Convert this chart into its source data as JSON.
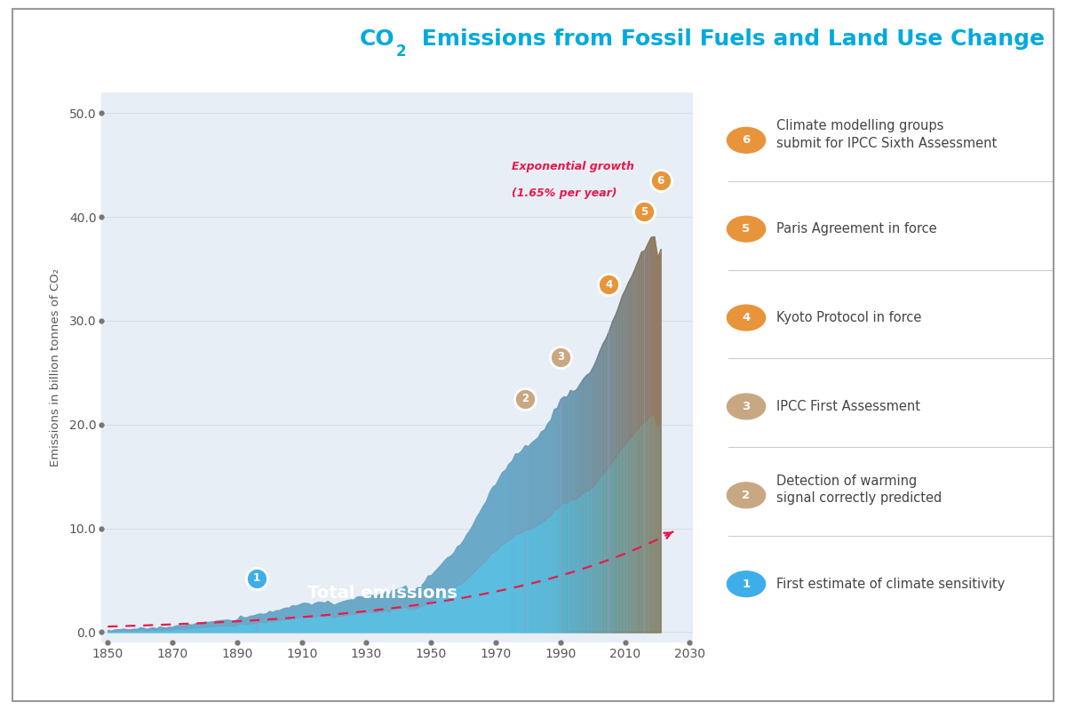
{
  "title_part1": "CO",
  "title_sub": "2",
  "title_part2": " Emissions from Fossil Fuels and Land Use Change",
  "ylabel": "Emissions in billion tonnes of CO₂",
  "xlim": [
    1848,
    2031
  ],
  "ylim": [
    -1,
    52
  ],
  "yticks": [
    0.0,
    10.0,
    20.0,
    30.0,
    40.0,
    50.0
  ],
  "xticks": [
    1850,
    1870,
    1890,
    1910,
    1930,
    1950,
    1970,
    1990,
    2010,
    2030
  ],
  "bg_color": "#ffffff",
  "plot_bg_color": "#e8eef5",
  "title_color": "#00aadd",
  "axis_label_color": "#555555",
  "tick_color": "#555555",
  "area_label": "Total emissions",
  "area_label_color": "#ffffff",
  "exp_label_line1": "Exponential growth",
  "exp_label_line2": "(1.65% per year)",
  "exp_label_color": "#e8194b",
  "exp_curve_color": "#e8194b",
  "exp_base_year": 1850,
  "exp_base_val": 0.54,
  "exp_growth": 0.0165,
  "emissions_data": {
    "years": [
      1850,
      1855,
      1860,
      1865,
      1870,
      1875,
      1880,
      1885,
      1890,
      1895,
      1900,
      1905,
      1910,
      1915,
      1920,
      1925,
      1930,
      1935,
      1940,
      1945,
      1950,
      1955,
      1960,
      1965,
      1970,
      1975,
      1979,
      1980,
      1985,
      1990,
      1995,
      2000,
      2005,
      2010,
      2015,
      2016,
      2017,
      2018,
      2019,
      2020,
      2021
    ],
    "values": [
      0.2,
      0.25,
      0.35,
      0.45,
      0.55,
      0.75,
      0.95,
      1.1,
      1.3,
      1.6,
      1.95,
      2.3,
      2.8,
      2.9,
      2.7,
      3.1,
      3.5,
      3.6,
      4.3,
      4.0,
      5.5,
      7.0,
      9.0,
      11.5,
      14.5,
      16.5,
      18.0,
      18.0,
      19.5,
      22.5,
      23.5,
      25.5,
      29.0,
      33.0,
      36.5,
      37.0,
      37.5,
      38.0,
      38.0,
      36.0,
      37.0
    ]
  },
  "markers": [
    {
      "num": 1,
      "year": 1896,
      "value": 5.2,
      "color": "#3daee9",
      "border_color": "#3daee9",
      "label": "First estimate of climate sensitivity"
    },
    {
      "num": 2,
      "year": 1979,
      "value": 22.5,
      "color": "#c8a882",
      "border_color": "#c8a882",
      "label": "Detection of warming\nsignal correctly predicted"
    },
    {
      "num": 3,
      "year": 1990,
      "value": 26.5,
      "color": "#c8a882",
      "border_color": "#c8a882",
      "label": "IPCC First Assessment"
    },
    {
      "num": 4,
      "year": 2005,
      "value": 33.5,
      "color": "#e8943a",
      "border_color": "#e8943a",
      "label": "Kyoto Protocol in force"
    },
    {
      "num": 5,
      "year": 2016,
      "value": 40.5,
      "color": "#e8943a",
      "border_color": "#e8943a",
      "label": "Paris Agreement in force"
    },
    {
      "num": 6,
      "year": 2021,
      "value": 43.5,
      "color": "#e8943a",
      "border_color": "#e8943a",
      "label": "Climate modelling groups\nsubmit for IPCC Sixth Assessment"
    }
  ],
  "vline_color": "#9999bb",
  "outer_border_color": "#999999",
  "legend_items": [
    {
      "num": 6,
      "color": "#e8943a",
      "label": "Climate modelling groups\nsubmit for IPCC Sixth Assessment"
    },
    {
      "num": 5,
      "color": "#e8943a",
      "label": "Paris Agreement in force"
    },
    {
      "num": 4,
      "color": "#e8943a",
      "label": "Kyoto Protocol in force"
    },
    {
      "num": 3,
      "color": "#c8a882",
      "label": "IPCC First Assessment"
    },
    {
      "num": 2,
      "color": "#c8a882",
      "label": "Detection of warming\nsignal correctly predicted"
    },
    {
      "num": 1,
      "color": "#3daee9",
      "label": "First estimate of climate sensitivity"
    }
  ]
}
